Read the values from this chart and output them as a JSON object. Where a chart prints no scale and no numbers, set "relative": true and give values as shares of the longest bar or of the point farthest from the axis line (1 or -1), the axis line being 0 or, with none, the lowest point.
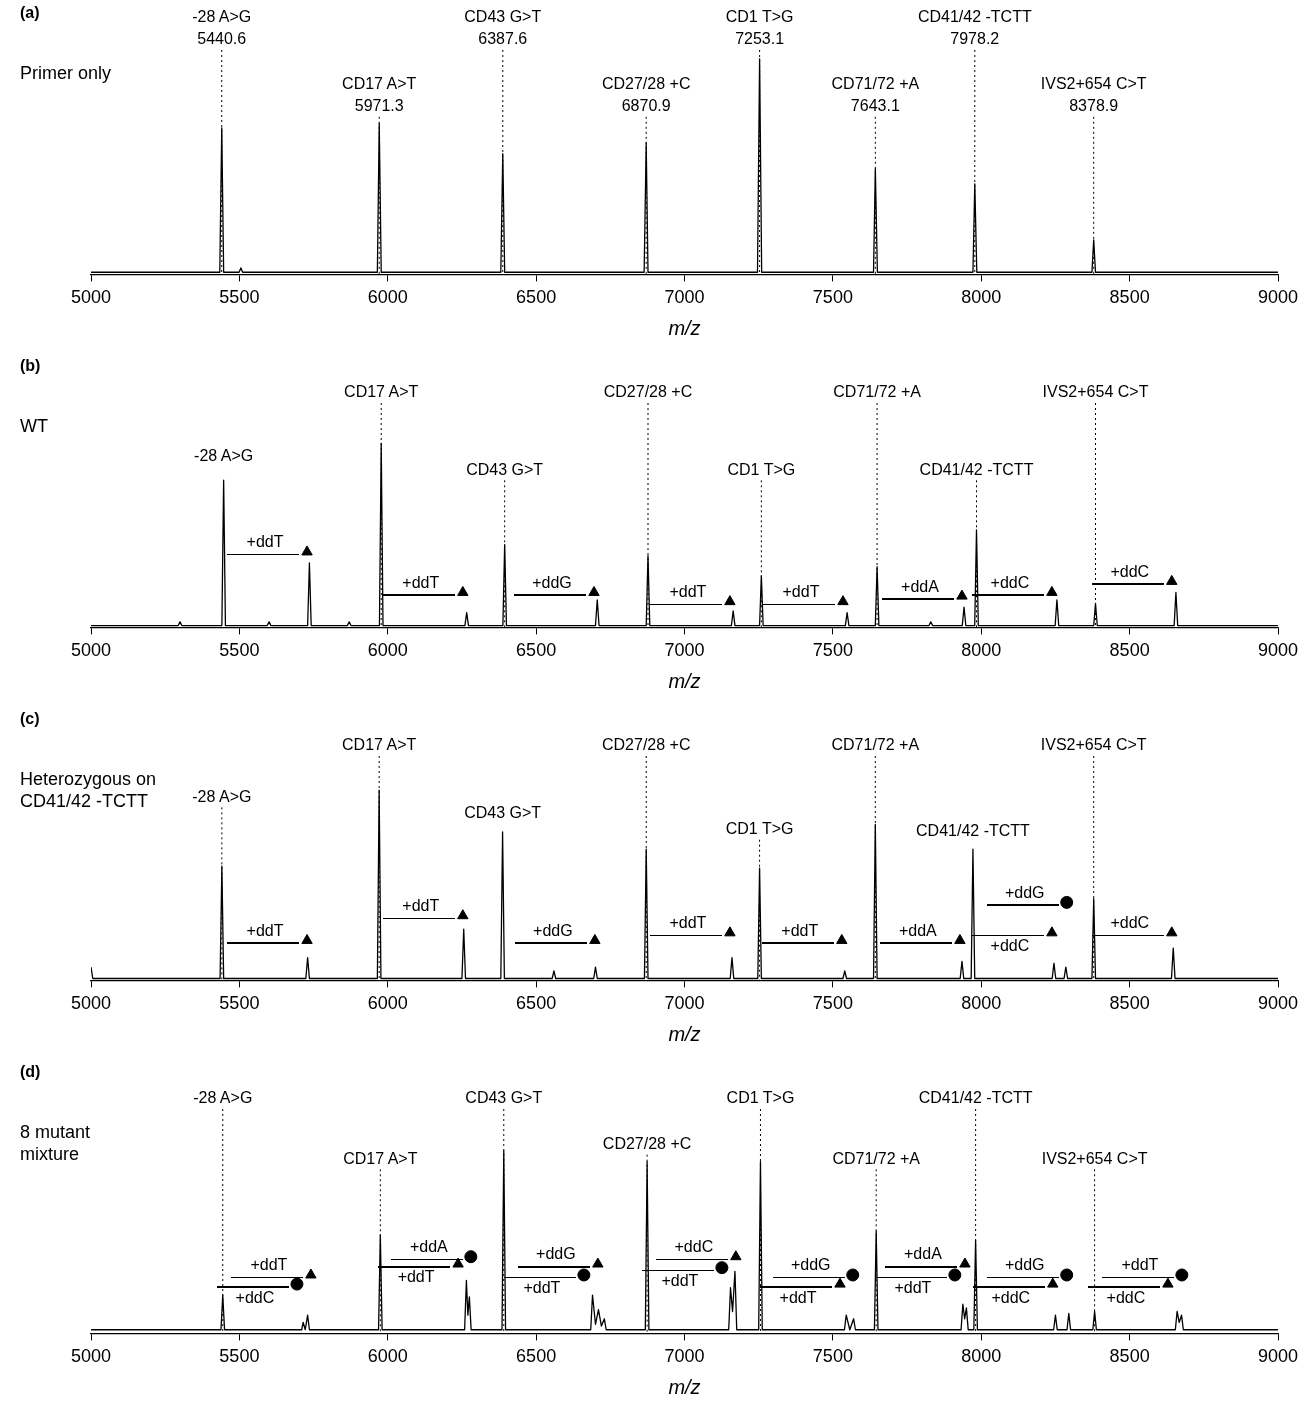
{
  "chart_data": [
    {
      "type": "line",
      "title": "(a)",
      "xlabel": "m/z",
      "relative": true,
      "xlim": [
        5000,
        9000
      ],
      "xticks": [
        5000,
        5500,
        6000,
        6500,
        7000,
        7500,
        8000,
        8500,
        9000
      ],
      "series": [
        {
          "color": "#000000",
          "x": [
            5000,
            5434,
            5440.6,
            5447,
            5499,
            5505,
            5511,
            5965,
            5971.3,
            5978,
            6381,
            6387.6,
            6394,
            6864,
            6870.9,
            6877,
            7246,
            7253.1,
            7260,
            7637,
            7643.1,
            7650,
            7972,
            7978.2,
            7985,
            8373,
            8378.9,
            8385,
            9000
          ],
          "values": [
            0.01,
            0.01,
            0.68,
            0.01,
            0.01,
            0.03,
            0.01,
            0.01,
            0.7,
            0.01,
            0.01,
            0.56,
            0.01,
            0.01,
            0.61,
            0.01,
            0.01,
            1.0,
            0.01,
            0.01,
            0.49,
            0.01,
            0.01,
            0.42,
            0.01,
            0.01,
            0.16,
            0.01,
            0.01
          ]
        }
      ],
      "ref_lines": [
        {
          "axis": "x",
          "value": 5440.6,
          "line_style": "dotted"
        },
        {
          "axis": "x",
          "value": 5971.3,
          "line_style": "dotted"
        },
        {
          "axis": "x",
          "value": 6387.6,
          "line_style": "dotted"
        },
        {
          "axis": "x",
          "value": 6870.9,
          "line_style": "dotted"
        },
        {
          "axis": "x",
          "value": 7253.1,
          "line_style": "dotted"
        },
        {
          "axis": "x",
          "value": 7643.1,
          "line_style": "dotted"
        },
        {
          "axis": "x",
          "value": 7978.2,
          "line_style": "dotted"
        },
        {
          "axis": "x",
          "value": 8378.9,
          "line_style": "dotted"
        }
      ],
      "annotations": [
        "Primer only",
        {
          "text": "-28 A>G\n5440.6",
          "x": 5440.6,
          "y": 1.05
        },
        {
          "text": "CD17 A>T\n5971.3",
          "x": 5971.3,
          "y": 0.74
        },
        {
          "text": "CD43 G>T\n6387.6",
          "x": 6387.6,
          "y": 1.05
        },
        {
          "text": "CD27/28 +C\n6870.9",
          "x": 6870.9,
          "y": 0.74
        },
        {
          "text": "CD1 T>G\n7253.1",
          "x": 7253.1,
          "y": 1.05
        },
        {
          "text": "CD71/72 +A\n7643.1",
          "x": 7643.1,
          "y": 0.74
        },
        {
          "text": "CD41/42 -TCTT\n7978.2",
          "x": 7978.2,
          "y": 1.05
        },
        {
          "text": "IVS2+654 C>T\n8378.9",
          "x": 8378.9,
          "y": 0.74
        }
      ]
    },
    {
      "type": "line",
      "title": "(b)",
      "xlabel": "m/z",
      "relative": true,
      "xlim": [
        5000,
        9000
      ],
      "xticks": [
        5000,
        5500,
        6000,
        6500,
        7000,
        7500,
        8000,
        8500,
        9000
      ],
      "series": [
        {
          "color": "#000000",
          "x": [
            5000,
            5294,
            5300,
            5306,
            5441,
            5447,
            5453,
            5594,
            5600,
            5606,
            5730,
            5736,
            5742,
            5864,
            5870,
            5876,
            5972,
            5978,
            5984,
            6260,
            6266,
            6272,
            6388,
            6394,
            6400,
            6700,
            6706,
            6712,
            6871,
            6877,
            6883,
            7158,
            7164,
            7170,
            7253,
            7259,
            7265,
            7542,
            7548,
            7554,
            7643,
            7649,
            7655,
            7824,
            7830,
            7836,
            7936,
            7942,
            7948,
            7978,
            7984,
            7990,
            8249,
            8255,
            8261,
            8379,
            8385,
            8391,
            8650,
            8656,
            8662,
            9000
          ],
          "values": [
            0.01,
            0.01,
            0.03,
            0.01,
            0.01,
            0.8,
            0.01,
            0.01,
            0.03,
            0.01,
            0.01,
            0.35,
            0.01,
            0.01,
            0.03,
            0.01,
            0.01,
            1.0,
            0.01,
            0.01,
            0.08,
            0.01,
            0.01,
            0.45,
            0.01,
            0.01,
            0.15,
            0.01,
            0.01,
            0.39,
            0.01,
            0.01,
            0.09,
            0.01,
            0.01,
            0.28,
            0.01,
            0.01,
            0.08,
            0.01,
            0.01,
            0.33,
            0.01,
            0.01,
            0.03,
            0.01,
            0.01,
            0.11,
            0.01,
            0.01,
            0.53,
            0.01,
            0.01,
            0.15,
            0.01,
            0.01,
            0.13,
            0.01,
            0.01,
            0.19,
            0.01,
            0.01
          ]
        },
        {
          "type": "scatter",
          "marker": "triangle",
          "color": "#000000",
          "x": [
            5728,
            6253,
            6695,
            7153,
            7534,
            7935,
            8238,
            8642
          ],
          "values": [
            0.41,
            0.19,
            0.19,
            0.14,
            0.14,
            0.17,
            0.19,
            0.25
          ]
        }
      ],
      "ref_lines": [
        {
          "axis": "x",
          "value": 5978,
          "line_style": "dotted"
        },
        {
          "axis": "x",
          "value": 6394,
          "line_style": "dotted"
        },
        {
          "axis": "x",
          "value": 6877,
          "line_style": "dotted"
        },
        {
          "axis": "x",
          "value": 7259,
          "line_style": "dotted"
        },
        {
          "axis": "x",
          "value": 7649,
          "line_style": "dotted"
        },
        {
          "axis": "x",
          "value": 7984,
          "line_style": "dotted"
        },
        {
          "axis": "x",
          "value": 8385,
          "line_style": "dotted"
        }
      ],
      "annotations": [
        "WT",
        {
          "text": "-28 A>G",
          "x": 5447,
          "y": 0.83
        },
        {
          "text": "CD17 A>T",
          "x": 5978,
          "y": 1.23
        },
        {
          "text": "CD43 G>T",
          "x": 6394,
          "y": 0.81
        },
        {
          "text": "CD27/28 +C",
          "x": 6877,
          "y": 1.23
        },
        {
          "text": "CD1 T>G",
          "x": 7259,
          "y": 0.81
        },
        {
          "text": "CD71/72 +A",
          "x": 7649,
          "y": 1.23
        },
        {
          "text": "CD41/42 -TCTT",
          "x": 7984,
          "y": 0.81
        },
        {
          "text": "IVS2+654 C>T",
          "x": 8385,
          "y": 1.23
        },
        {
          "text": "+ddT",
          "x": 5728,
          "y": 0.41
        },
        {
          "text": "+ddT",
          "x": 6253,
          "y": 0.19
        },
        {
          "text": "+ddG",
          "x": 6695,
          "y": 0.19
        },
        {
          "text": "+ddT",
          "x": 7153,
          "y": 0.14
        },
        {
          "text": "+ddT",
          "x": 7534,
          "y": 0.14
        },
        {
          "text": "+ddA",
          "x": 7935,
          "y": 0.17
        },
        {
          "text": "+ddC",
          "x": 8238,
          "y": 0.19
        },
        {
          "text": "+ddC",
          "x": 8642,
          "y": 0.25
        }
      ]
    },
    {
      "type": "line",
      "title": "(c)",
      "xlabel": "m/z",
      "relative": true,
      "xlim": [
        5000,
        9000
      ],
      "xticks": [
        5000,
        5500,
        6000,
        6500,
        7000,
        7500,
        8000,
        8500,
        9000
      ],
      "series": [
        {
          "color": "#000000",
          "x": [
            5000,
            5006,
            5435,
            5441,
            5447,
            5724,
            5730,
            5736,
            5965,
            5971,
            5977,
            6250,
            6256,
            6262,
            6381,
            6387,
            6393,
            6554,
            6560,
            6566,
            6694,
            6700,
            6706,
            6865,
            6871,
            6877,
            7154,
            7160,
            7166,
            7247,
            7253,
            7259,
            7534,
            7540,
            7546,
            7637,
            7643,
            7649,
            7929,
            7935,
            7941,
            7966,
            7972,
            7978,
            8239,
            8245,
            8251,
            8279,
            8285,
            8291,
            8373,
            8379,
            8385,
            8641,
            8647,
            8653,
            9000
          ],
          "values": [
            0.07,
            0.01,
            0.01,
            0.6,
            0.01,
            0.01,
            0.12,
            0.01,
            0.01,
            1.0,
            0.01,
            0.01,
            0.27,
            0.01,
            0.01,
            0.78,
            0.01,
            0.01,
            0.05,
            0.01,
            0.01,
            0.07,
            0.01,
            0.01,
            0.69,
            0.01,
            0.01,
            0.12,
            0.01,
            0.01,
            0.59,
            0.01,
            0.01,
            0.05,
            0.01,
            0.01,
            0.82,
            0.01,
            0.01,
            0.1,
            0.01,
            0.01,
            0.69,
            0.01,
            0.01,
            0.09,
            0.01,
            0.01,
            0.07,
            0.01,
            0.01,
            0.43,
            0.01,
            0.01,
            0.17,
            0.01,
            0.01
          ]
        },
        {
          "type": "scatter",
          "marker": "triangle",
          "color": "#000000",
          "x": [
            5728,
            6253,
            6698,
            7153,
            7530,
            7928,
            8238,
            8642
          ],
          "values": [
            0.21,
            0.34,
            0.21,
            0.25,
            0.21,
            0.21,
            0.25,
            0.25
          ]
        },
        {
          "type": "scatter",
          "marker": "circle",
          "color": "#000000",
          "x": [
            8288
          ],
          "values": [
            0.41
          ]
        }
      ],
      "ref_lines": [
        {
          "axis": "x",
          "value": 5441,
          "line_style": "dotted"
        },
        {
          "axis": "x",
          "value": 5971,
          "line_style": "dotted"
        },
        {
          "axis": "x",
          "value": 6871,
          "line_style": "dotted"
        },
        {
          "axis": "x",
          "value": 7253,
          "line_style": "dotted"
        },
        {
          "axis": "x",
          "value": 7643,
          "line_style": "dotted"
        },
        {
          "axis": "x",
          "value": 8379,
          "line_style": "dotted"
        }
      ],
      "annotations": [
        "Heterozygous on\nCD41/42 -TCTT",
        {
          "text": "-28 A>G",
          "x": 5441,
          "y": 0.92
        },
        {
          "text": "CD17 A>T",
          "x": 5971,
          "y": 1.19
        },
        {
          "text": "CD43 G>T",
          "x": 6387,
          "y": 0.78
        },
        {
          "text": "CD27/28 +C",
          "x": 6871,
          "y": 1.19
        },
        {
          "text": "CD1 T>G",
          "x": 7253,
          "y": 0.75
        },
        {
          "text": "CD71/72 +A",
          "x": 7643,
          "y": 1.19
        },
        {
          "text": "CD41/42 -TCTT",
          "x": 7972,
          "y": 0.69
        },
        {
          "text": "IVS2+654 C>T",
          "x": 8379,
          "y": 1.19
        },
        {
          "text": "+ddT",
          "x": 5728,
          "y": 0.21
        },
        {
          "text": "+ddT",
          "x": 6253,
          "y": 0.34
        },
        {
          "text": "+ddG",
          "x": 6698,
          "y": 0.21
        },
        {
          "text": "+ddT",
          "x": 7153,
          "y": 0.25
        },
        {
          "text": "+ddT",
          "x": 7530,
          "y": 0.21
        },
        {
          "text": "+ddA",
          "x": 7928,
          "y": 0.21
        },
        {
          "text": "+ddG",
          "x": 8288,
          "y": 0.41
        },
        {
          "text": "+ddC",
          "x": 8238,
          "y": 0.25
        },
        {
          "text": "+ddC",
          "x": 8642,
          "y": 0.25
        }
      ]
    },
    {
      "type": "line",
      "title": "(d)",
      "xlabel": "m/z",
      "relative": true,
      "xlim": [
        5000,
        9000
      ],
      "xticks": [
        5000,
        5500,
        6000,
        6500,
        7000,
        7500,
        8000,
        8500,
        9000
      ],
      "series": [
        {
          "color": "#000000",
          "x": [
            5000,
            5438,
            5444,
            5450,
            5710,
            5715,
            5722,
            5730,
            5736,
            5969,
            5975,
            5981,
            6259,
            6265,
            6270,
            6275,
            6281,
            6385,
            6391,
            6397,
            6684,
            6690,
            6700,
            6710,
            6720,
            6730,
            6736,
            6868,
            6874,
            6880,
            7149,
            7155,
            7162,
            7170,
            7176,
            7250,
            7256,
            7262,
            7539,
            7545,
            7557,
            7570,
            7576,
            7640,
            7646,
            7652,
            7932,
            7938,
            7944,
            7950,
            7956,
            7975,
            7981,
            7987,
            8244,
            8250,
            8256,
            8289,
            8295,
            8301,
            8376,
            8382,
            8388,
            8654,
            8660,
            8667,
            8675,
            8681,
            9000
          ],
          "values": [
            0.02,
            0.02,
            0.21,
            0.02,
            0.02,
            0.06,
            0.02,
            0.1,
            0.02,
            0.02,
            0.54,
            0.02,
            0.02,
            0.29,
            0.1,
            0.2,
            0.02,
            0.02,
            1.0,
            0.02,
            0.02,
            0.21,
            0.05,
            0.13,
            0.04,
            0.08,
            0.02,
            0.02,
            0.94,
            0.02,
            0.02,
            0.25,
            0.12,
            0.34,
            0.02,
            0.02,
            0.94,
            0.02,
            0.02,
            0.1,
            0.02,
            0.08,
            0.02,
            0.02,
            0.56,
            0.02,
            0.02,
            0.16,
            0.08,
            0.14,
            0.02,
            0.02,
            0.51,
            0.02,
            0.02,
            0.1,
            0.02,
            0.02,
            0.11,
            0.02,
            0.02,
            0.12,
            0.02,
            0.02,
            0.12,
            0.06,
            0.1,
            0.02,
            0.02
          ]
        },
        {
          "type": "scatter",
          "marker": "triangle",
          "color": "#000000",
          "x": [
            5741,
            6237,
            6708,
            7173,
            7524,
            7945,
            8241,
            8629
          ],
          "values": [
            0.32,
            0.38,
            0.38,
            0.42,
            0.27,
            0.38,
            0.27,
            0.27
          ]
        },
        {
          "type": "scatter",
          "marker": "circle",
          "color": "#000000",
          "x": [
            5694,
            6280,
            6661,
            7126,
            7567,
            7911,
            8288,
            8676
          ],
          "values": [
            0.27,
            0.42,
            0.32,
            0.36,
            0.32,
            0.32,
            0.32,
            0.32
          ]
        }
      ],
      "ref_lines": [
        {
          "axis": "x",
          "value": 5444,
          "line_style": "dotted"
        },
        {
          "axis": "x",
          "value": 5975,
          "line_style": "dotted"
        },
        {
          "axis": "x",
          "value": 6391,
          "line_style": "dotted"
        },
        {
          "axis": "x",
          "value": 6874,
          "line_style": "dotted"
        },
        {
          "axis": "x",
          "value": 7256,
          "line_style": "dotted"
        },
        {
          "axis": "x",
          "value": 7646,
          "line_style": "dotted"
        },
        {
          "axis": "x",
          "value": 7981,
          "line_style": "dotted"
        },
        {
          "axis": "x",
          "value": 8382,
          "line_style": "dotted"
        }
      ],
      "annotations": [
        "8 mutant\nmixture",
        {
          "text": "-28 A>G",
          "x": 5444,
          "y": 1.24
        },
        {
          "text": "CD17 A>T",
          "x": 5975,
          "y": 0.91
        },
        {
          "text": "CD43 G>T",
          "x": 6391,
          "y": 1.24
        },
        {
          "text": "CD27/28 +C",
          "x": 6874,
          "y": 0.99
        },
        {
          "text": "CD1 T>G",
          "x": 7256,
          "y": 1.24
        },
        {
          "text": "CD71/72 +A",
          "x": 7646,
          "y": 0.91
        },
        {
          "text": "CD41/42 -TCTT",
          "x": 7981,
          "y": 1.24
        },
        {
          "text": "IVS2+654 C>T",
          "x": 8382,
          "y": 0.91
        },
        {
          "text": "+ddT",
          "x": 5741,
          "y": 0.32
        },
        {
          "text": "+ddC",
          "x": 5694,
          "y": 0.27
        },
        {
          "text": "+ddA",
          "x": 6280,
          "y": 0.42
        },
        {
          "text": "+ddT",
          "x": 6237,
          "y": 0.38
        },
        {
          "text": "+ddG",
          "x": 6708,
          "y": 0.38
        },
        {
          "text": "+ddT",
          "x": 6661,
          "y": 0.32
        },
        {
          "text": "+ddC",
          "x": 7173,
          "y": 0.42
        },
        {
          "text": "+ddT",
          "x": 7126,
          "y": 0.36
        },
        {
          "text": "+ddG",
          "x": 7567,
          "y": 0.32
        },
        {
          "text": "+ddT",
          "x": 7524,
          "y": 0.27
        },
        {
          "text": "+ddA",
          "x": 7945,
          "y": 0.38
        },
        {
          "text": "+ddT",
          "x": 7911,
          "y": 0.32
        },
        {
          "text": "+ddG",
          "x": 8288,
          "y": 0.32
        },
        {
          "text": "+ddC",
          "x": 8241,
          "y": 0.27
        },
        {
          "text": "+ddT",
          "x": 8676,
          "y": 0.32
        },
        {
          "text": "+ddC",
          "x": 8629,
          "y": 0.27
        }
      ]
    }
  ]
}
